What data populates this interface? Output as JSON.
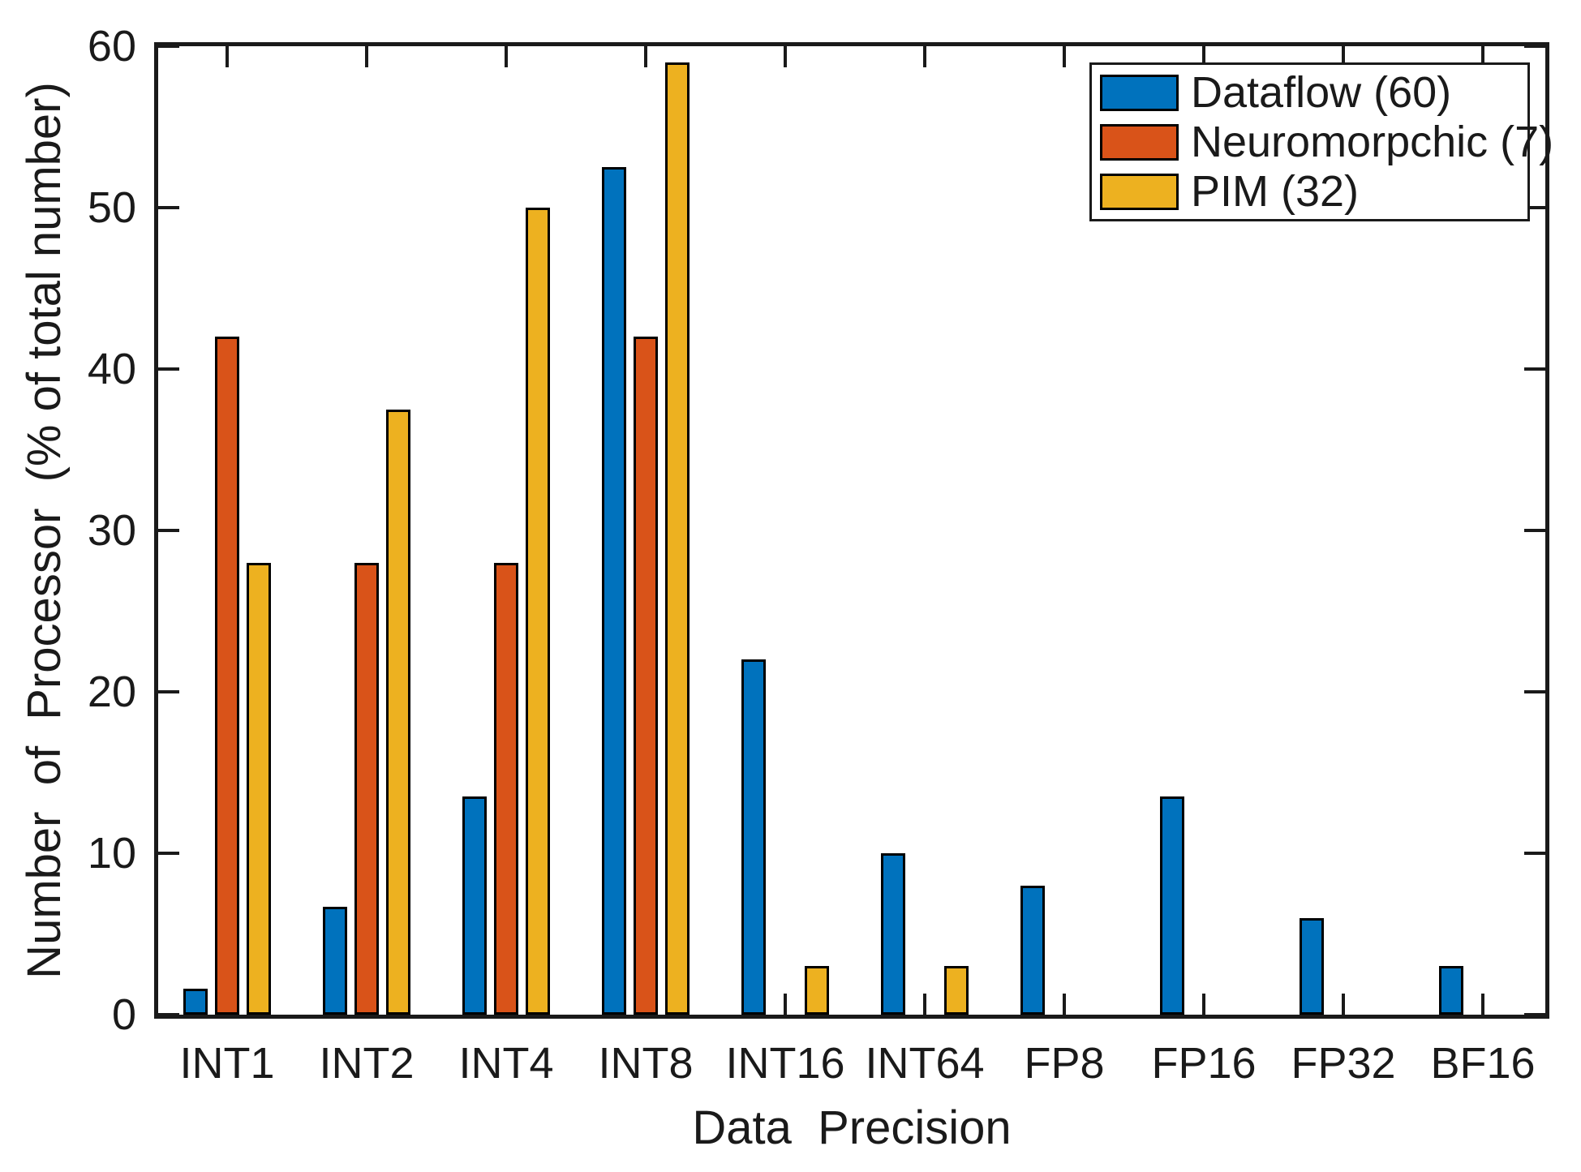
{
  "figure": {
    "background": "#ffffff",
    "axis_color": "#1a1a1a",
    "text_color": "#1a1a1a"
  },
  "chart_data": {
    "type": "bar",
    "title": "",
    "xlabel": "Data  Precision",
    "ylabel": "Number  of  Processor  (% of total number)",
    "categories": [
      "INT1",
      "INT2",
      "INT4",
      "INT8",
      "INT16",
      "INT64",
      "FP8",
      "FP16",
      "FP32",
      "BF16"
    ],
    "series": [
      {
        "name": "Dataflow (60)",
        "color": "#0072BD",
        "values": [
          1.6,
          6.7,
          13.5,
          52.5,
          22,
          10,
          8,
          13.5,
          6,
          3
        ]
      },
      {
        "name": "Neuromorpchic (7)",
        "color": "#D95319",
        "values": [
          42,
          28,
          28,
          42,
          0,
          0,
          0,
          0,
          0,
          0
        ]
      },
      {
        "name": "PIM (32)",
        "color": "#EDB120",
        "values": [
          28,
          37.5,
          50,
          59,
          3,
          3,
          0,
          0,
          0,
          0
        ]
      }
    ],
    "ylim": [
      0,
      60
    ],
    "yticks": [
      0,
      10,
      20,
      30,
      40,
      50,
      60
    ],
    "grid": false,
    "legend_position": "top-right",
    "bar_edge_color": "#000000"
  }
}
